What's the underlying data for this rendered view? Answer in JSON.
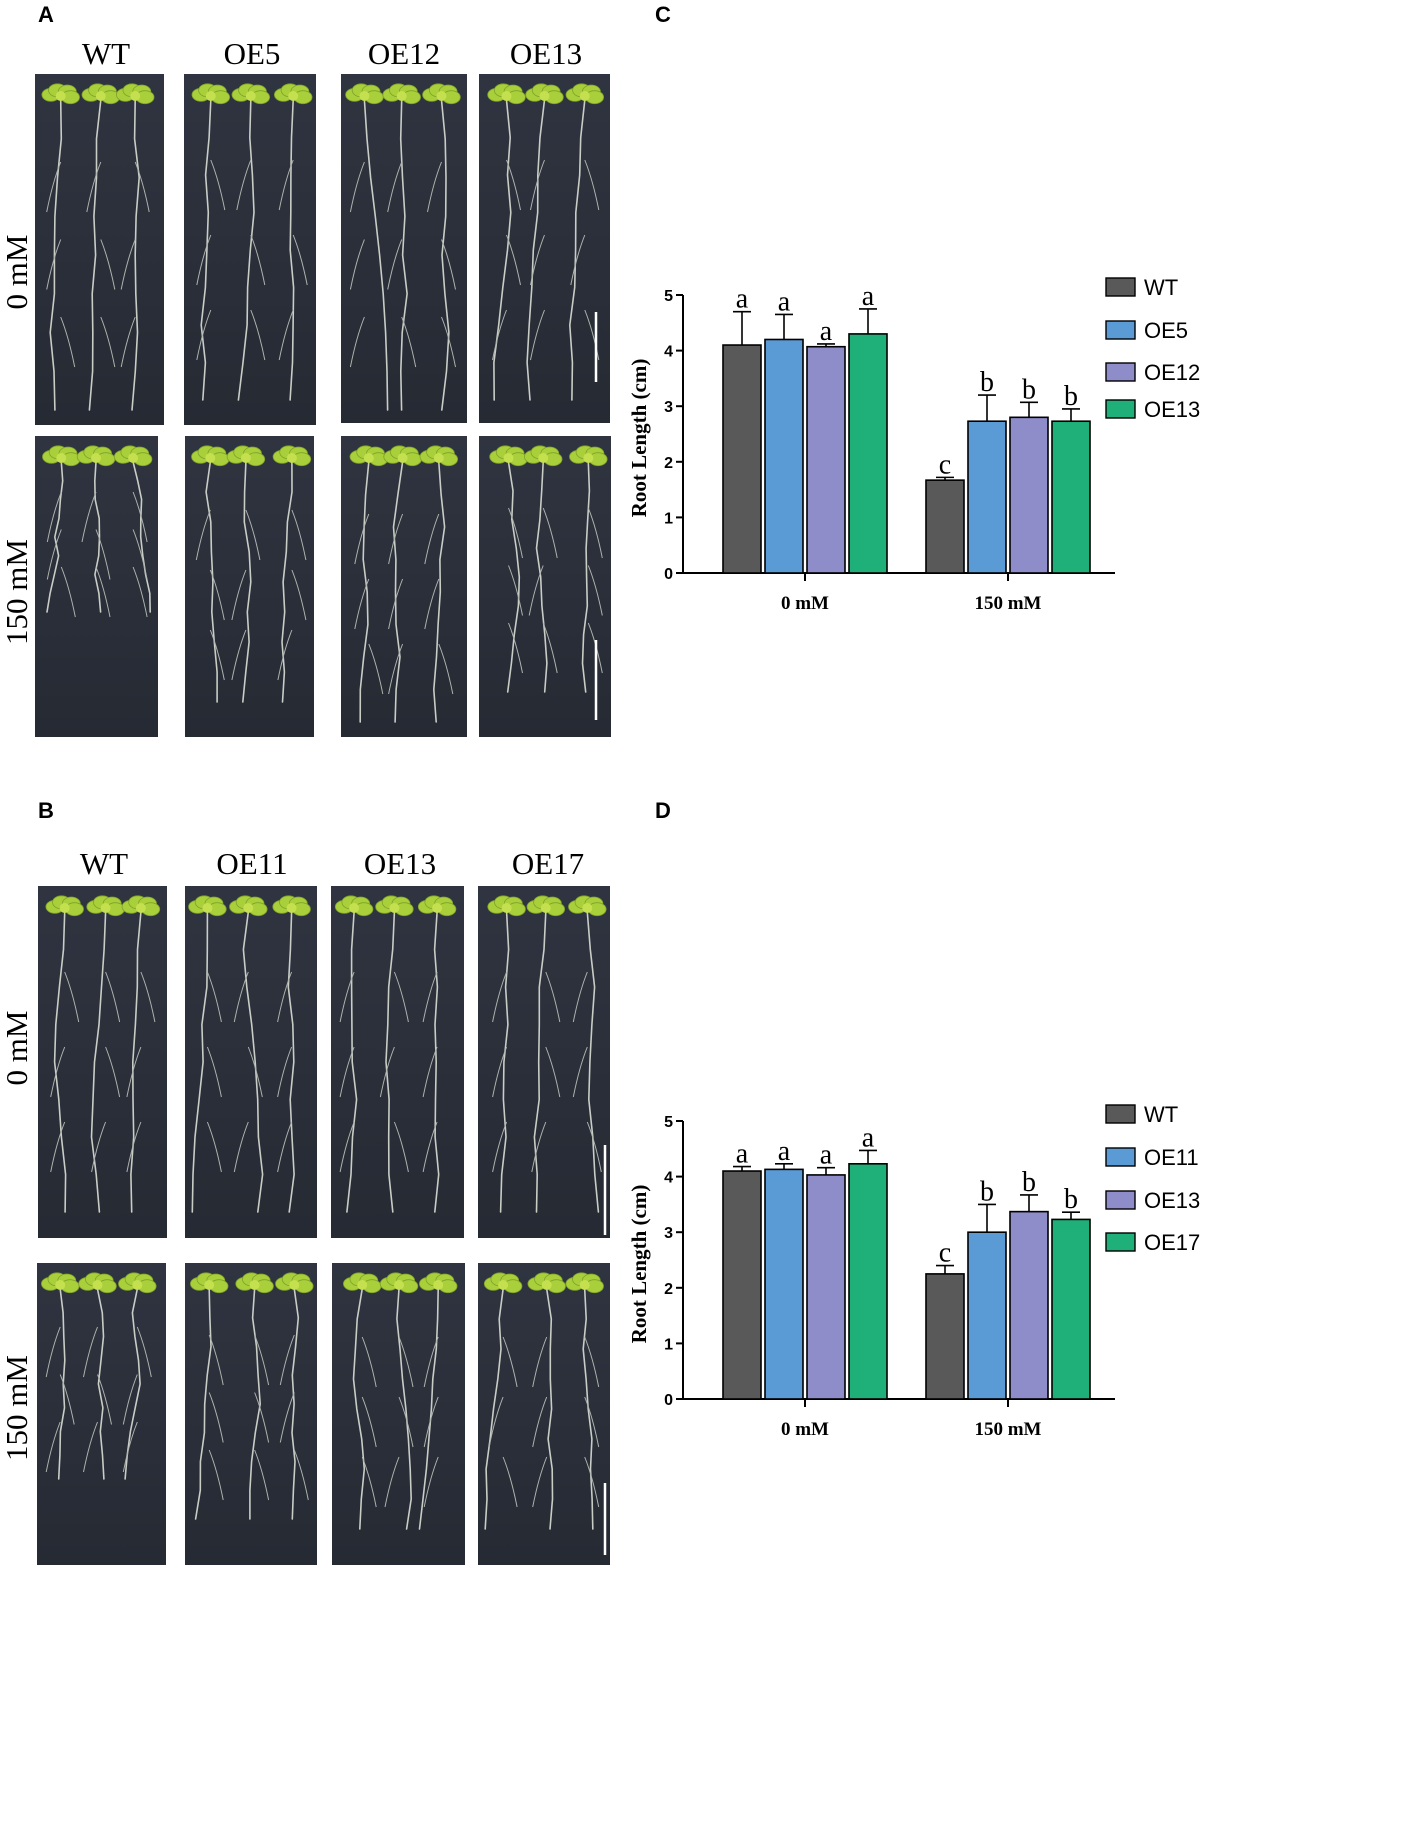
{
  "panels": {
    "A": {
      "label": "A",
      "columns": [
        "WT",
        "OE5",
        "OE12",
        "OE13"
      ],
      "rows": [
        "0 mM",
        "150 mM"
      ]
    },
    "B": {
      "label": "B",
      "columns": [
        "WT",
        "OE11",
        "OE13",
        "OE17"
      ],
      "rows": [
        "0 mM",
        "150 mM"
      ]
    }
  },
  "colors": {
    "WT": "#595959",
    "blue": "#5b9bd5",
    "purple": "#8e8cc9",
    "green": "#1faf78"
  },
  "chart_data": [
    {
      "label": "C",
      "type": "bar",
      "ylabel": "Root Length (cm)",
      "ylim": [
        0,
        5
      ],
      "yticks": [
        0,
        1,
        2,
        3,
        4,
        5
      ],
      "categories": [
        "0 mM",
        "150 mM"
      ],
      "legend_position": "right",
      "series": [
        {
          "name": "WT",
          "color": "#595959",
          "values": [
            4.1,
            1.67
          ],
          "errors": [
            0.6,
            0.05
          ],
          "letters": [
            "a",
            "c"
          ]
        },
        {
          "name": "OE5",
          "color": "#5b9bd5",
          "values": [
            4.2,
            2.73
          ],
          "errors": [
            0.45,
            0.47
          ],
          "letters": [
            "a",
            "b"
          ]
        },
        {
          "name": "OE12",
          "color": "#8e8cc9",
          "values": [
            4.07,
            2.8
          ],
          "errors": [
            0.05,
            0.27
          ],
          "letters": [
            "a",
            "b"
          ]
        },
        {
          "name": "OE13",
          "color": "#1faf78",
          "values": [
            4.3,
            2.73
          ],
          "errors": [
            0.45,
            0.22
          ],
          "letters": [
            "a",
            "b"
          ]
        }
      ]
    },
    {
      "label": "D",
      "type": "bar",
      "ylabel": "Root Length (cm)",
      "ylim": [
        0,
        5
      ],
      "yticks": [
        0,
        1,
        2,
        3,
        4,
        5
      ],
      "categories": [
        "0 mM",
        "150 mM"
      ],
      "legend_position": "right",
      "series": [
        {
          "name": "WT",
          "color": "#595959",
          "values": [
            4.1,
            2.25
          ],
          "errors": [
            0.08,
            0.15
          ],
          "letters": [
            "a",
            "c"
          ]
        },
        {
          "name": "OE11",
          "color": "#5b9bd5",
          "values": [
            4.13,
            3.0
          ],
          "errors": [
            0.1,
            0.5
          ],
          "letters": [
            "a",
            "b"
          ]
        },
        {
          "name": "OE13",
          "color": "#8e8cc9",
          "values": [
            4.03,
            3.37
          ],
          "errors": [
            0.13,
            0.3
          ],
          "letters": [
            "a",
            "b"
          ]
        },
        {
          "name": "OE17",
          "color": "#1faf78",
          "values": [
            4.23,
            3.23
          ],
          "errors": [
            0.24,
            0.13
          ],
          "letters": [
            "a",
            "b"
          ]
        }
      ]
    }
  ]
}
